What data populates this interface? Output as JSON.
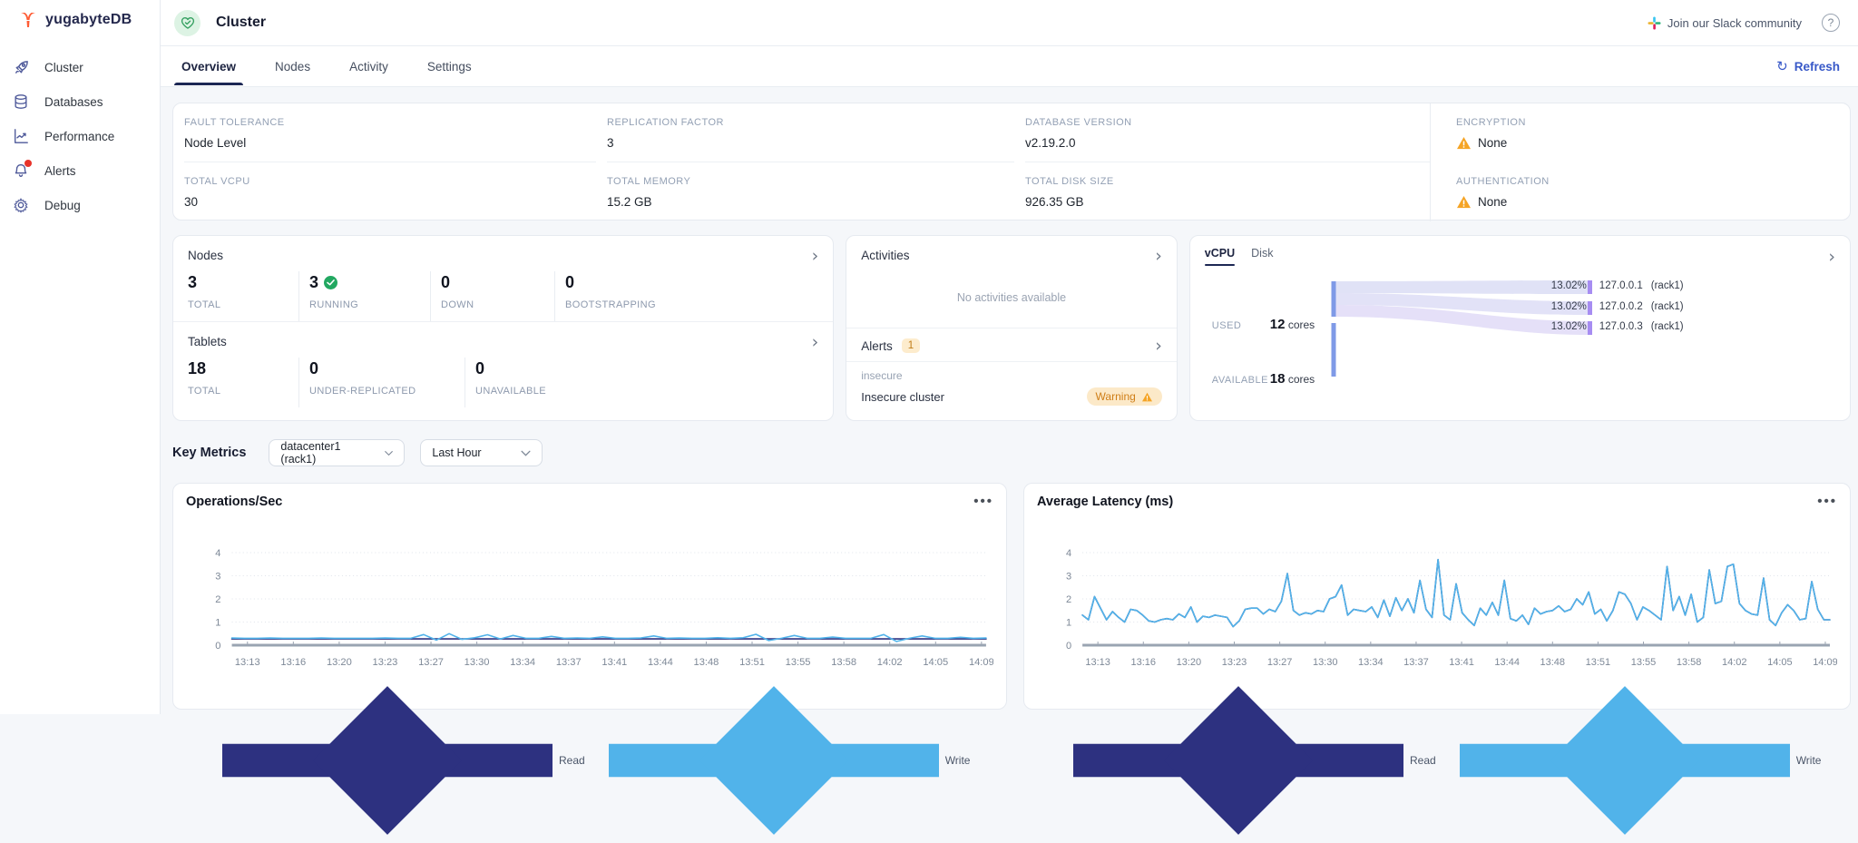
{
  "app": {
    "logo_text": "yugabyteDB"
  },
  "sidebar": {
    "items": [
      {
        "label": "Cluster",
        "icon": "rocket-icon"
      },
      {
        "label": "Databases",
        "icon": "database-icon"
      },
      {
        "label": "Performance",
        "icon": "performance-chart-icon"
      },
      {
        "label": "Alerts",
        "icon": "bell-icon",
        "has_notification_dot": true
      },
      {
        "label": "Debug",
        "icon": "gear-icon"
      }
    ]
  },
  "header": {
    "title": "Cluster",
    "slack_link": "Join our Slack community",
    "help": "?"
  },
  "tabs": {
    "items": [
      "Overview",
      "Nodes",
      "Activity",
      "Settings"
    ],
    "active": "Overview",
    "refresh_label": "Refresh"
  },
  "info": {
    "fault_tolerance": {
      "label": "FAULT TOLERANCE",
      "value": "Node Level"
    },
    "replication_factor": {
      "label": "REPLICATION FACTOR",
      "value": "3"
    },
    "database_version": {
      "label": "DATABASE VERSION",
      "value": "v2.19.2.0"
    },
    "encryption": {
      "label": "ENCRYPTION",
      "value": "None"
    },
    "total_vcpu": {
      "label": "TOTAL VCPU",
      "value": "30"
    },
    "total_memory": {
      "label": "TOTAL MEMORY",
      "value": "15.2 GB"
    },
    "total_disk_size": {
      "label": "TOTAL DISK SIZE",
      "value": "926.35 GB"
    },
    "authentication": {
      "label": "AUTHENTICATION",
      "value": "None"
    }
  },
  "nodes_panel": {
    "title": "Nodes",
    "stats": [
      {
        "value": "3",
        "label": "TOTAL"
      },
      {
        "value": "3",
        "label": "RUNNING",
        "check": true
      },
      {
        "value": "0",
        "label": "DOWN"
      },
      {
        "value": "0",
        "label": "BOOTSTRAPPING"
      }
    ],
    "tablets_title": "Tablets",
    "tablet_stats": [
      {
        "value": "18",
        "label": "TOTAL"
      },
      {
        "value": "0",
        "label": "UNDER-REPLICATED"
      },
      {
        "value": "0",
        "label": "UNAVAILABLE"
      }
    ]
  },
  "activities_panel": {
    "title": "Activities",
    "empty_text": "No activities available",
    "alerts_title": "Alerts",
    "alerts_count": "1",
    "alert_name": "insecure",
    "alert_desc": "Insecure cluster",
    "alert_badge": "Warning"
  },
  "vcpu_panel": {
    "tabs": [
      "vCPU",
      "Disk"
    ],
    "active_tab": "vCPU",
    "used_label": "USED",
    "used_value": "12",
    "used_unit": "cores",
    "available_label": "AVAILABLE",
    "available_value": "18",
    "available_unit": "cores",
    "nodes": [
      {
        "pct": "13.02%",
        "name": "127.0.0.1",
        "zone": "(rack1)"
      },
      {
        "pct": "13.02%",
        "name": "127.0.0.2",
        "zone": "(rack1)"
      },
      {
        "pct": "13.02%",
        "name": "127.0.0.3",
        "zone": "(rack1)"
      }
    ]
  },
  "key_metrics": {
    "title": "Key Metrics",
    "region_filter": "datacenter1 (rack1)",
    "time_filter": "Last Hour"
  },
  "colors": {
    "accent_blue": "#3758c8",
    "active_navy": "#1c2754",
    "green": "#22a861",
    "warning_orange": "#f5a425",
    "series_read": "#2d3180",
    "series_write": "#51b3ea",
    "sankey_source_bar": "#7f9ae7",
    "sankey_node_bar": "#a78df2",
    "sankey_ribbon": "#e2e3f7"
  },
  "chart_data": [
    {
      "type": "line",
      "title": "Operations/Sec",
      "xlabel": "",
      "ylabel": "",
      "ylim": [
        0,
        4
      ],
      "yticks": [
        0,
        1,
        2,
        3,
        4
      ],
      "grid": "dotted-horizontal",
      "legend_position": "bottom-left",
      "x_labels": [
        "13:13",
        "13:16",
        "13:20",
        "13:23",
        "13:27",
        "13:30",
        "13:34",
        "13:37",
        "13:41",
        "13:44",
        "13:48",
        "13:51",
        "13:55",
        "13:58",
        "14:02",
        "14:05",
        "14:09"
      ],
      "series": [
        {
          "name": "Read",
          "color": "#2d3180",
          "values": [
            0.27,
            0.27,
            0.27,
            0.27,
            0.27,
            0.27,
            0.27,
            0.27,
            0.27,
            0.27,
            0.27,
            0.27,
            0.27,
            0.27,
            0.27,
            0.27,
            0.27,
            0.27,
            0.27,
            0.27,
            0.27,
            0.27,
            0.27,
            0.27,
            0.27,
            0.27,
            0.27,
            0.27,
            0.27,
            0.27,
            0.27,
            0.27,
            0.27,
            0.27,
            0.27,
            0.27,
            0.27,
            0.27,
            0.27,
            0.27,
            0.27,
            0.27,
            0.27,
            0.27,
            0.27,
            0.27,
            0.27,
            0.27,
            0.27,
            0.27,
            0.27,
            0.27,
            0.27,
            0.27,
            0.27,
            0.27,
            0.27,
            0.27,
            0.27,
            0.27
          ]
        },
        {
          "name": "Write",
          "color": "#51b3ea",
          "values": [
            0.31,
            0.3,
            0.3,
            0.31,
            0.3,
            0.3,
            0.3,
            0.31,
            0.3,
            0.3,
            0.3,
            0.3,
            0.31,
            0.3,
            0.3,
            0.46,
            0.22,
            0.5,
            0.25,
            0.32,
            0.45,
            0.27,
            0.42,
            0.3,
            0.3,
            0.38,
            0.3,
            0.31,
            0.3,
            0.36,
            0.3,
            0.3,
            0.31,
            0.4,
            0.3,
            0.31,
            0.3,
            0.3,
            0.32,
            0.3,
            0.32,
            0.47,
            0.2,
            0.3,
            0.42,
            0.3,
            0.3,
            0.35,
            0.3,
            0.3,
            0.3,
            0.46,
            0.16,
            0.3,
            0.4,
            0.3,
            0.3,
            0.34,
            0.3,
            0.31
          ]
        }
      ]
    },
    {
      "type": "line",
      "title": "Average Latency (ms)",
      "xlabel": "",
      "ylabel": "",
      "ylim": [
        0,
        4
      ],
      "yticks": [
        0,
        1,
        2,
        3,
        4
      ],
      "grid": "dotted-horizontal",
      "legend_position": "bottom-left",
      "x_labels": [
        "13:13",
        "13:16",
        "13:20",
        "13:23",
        "13:27",
        "13:30",
        "13:34",
        "13:37",
        "13:41",
        "13:44",
        "13:48",
        "13:51",
        "13:55",
        "13:58",
        "14:02",
        "14:05",
        "14:09"
      ],
      "series": [
        {
          "name": "Read",
          "color": "#2d3180",
          "values": [
            1.3,
            1.1,
            2.1,
            1.6,
            1.1,
            1.45,
            1.2,
            1.0,
            1.55,
            1.5,
            1.3,
            1.05,
            1.0,
            1.1,
            1.15,
            1.1,
            1.35,
            1.2,
            1.65,
            1.0,
            1.25,
            1.2,
            1.3,
            1.25,
            1.2,
            0.8,
            1.05,
            1.55,
            1.6,
            1.6,
            1.35,
            1.55,
            1.45,
            1.9,
            3.1,
            1.5,
            1.3,
            1.4,
            1.35,
            1.5,
            1.45,
            2.0,
            2.1,
            2.6,
            1.3,
            1.55,
            1.5,
            1.45,
            1.65,
            1.2,
            1.95,
            1.25,
            2.05,
            1.5,
            2.0,
            1.4,
            2.8,
            1.55,
            1.2,
            3.7,
            1.3,
            1.1,
            2.65,
            1.4,
            1.1,
            0.85,
            1.6,
            1.3,
            1.85,
            1.3,
            2.8,
            1.15,
            1.05,
            1.3,
            0.9,
            1.6,
            1.35,
            1.45,
            1.5,
            1.7,
            1.45,
            1.55,
            2.0,
            1.75,
            2.3,
            1.35,
            1.55,
            1.05,
            1.5,
            2.3,
            2.2,
            1.8,
            1.1,
            1.65,
            1.5,
            1.3,
            1.1,
            3.4,
            1.5,
            2.1,
            1.3,
            2.2,
            1.0,
            1.2,
            3.25,
            1.8,
            1.9,
            3.4,
            3.5,
            1.8,
            1.5,
            1.35,
            1.3,
            2.9,
            1.1,
            0.85,
            1.4,
            1.75,
            1.5,
            1.1,
            1.15,
            2.75,
            1.55,
            1.1,
            1.1
          ]
        },
        {
          "name": "Write",
          "color": "#51b3ea",
          "values": [
            1.3,
            1.1,
            2.1,
            1.6,
            1.1,
            1.45,
            1.2,
            1.0,
            1.55,
            1.5,
            1.3,
            1.05,
            1.0,
            1.1,
            1.15,
            1.1,
            1.35,
            1.2,
            1.65,
            1.0,
            1.25,
            1.2,
            1.3,
            1.25,
            1.2,
            0.8,
            1.05,
            1.55,
            1.6,
            1.6,
            1.35,
            1.55,
            1.45,
            1.9,
            3.1,
            1.5,
            1.3,
            1.4,
            1.35,
            1.5,
            1.45,
            2.0,
            2.1,
            2.6,
            1.3,
            1.55,
            1.5,
            1.45,
            1.65,
            1.2,
            1.95,
            1.25,
            2.05,
            1.5,
            2.0,
            1.4,
            2.8,
            1.55,
            1.2,
            3.7,
            1.3,
            1.1,
            2.65,
            1.4,
            1.1,
            0.85,
            1.6,
            1.3,
            1.85,
            1.3,
            2.8,
            1.15,
            1.05,
            1.3,
            0.9,
            1.6,
            1.35,
            1.45,
            1.5,
            1.7,
            1.45,
            1.55,
            2.0,
            1.75,
            2.3,
            1.35,
            1.55,
            1.05,
            1.5,
            2.3,
            2.2,
            1.8,
            1.1,
            1.65,
            1.5,
            1.3,
            1.1,
            3.4,
            1.5,
            2.1,
            1.3,
            2.2,
            1.0,
            1.2,
            3.25,
            1.8,
            1.9,
            3.4,
            3.5,
            1.8,
            1.5,
            1.35,
            1.3,
            2.9,
            1.1,
            0.85,
            1.4,
            1.75,
            1.5,
            1.1,
            1.15,
            2.75,
            1.55,
            1.1,
            1.1
          ]
        }
      ]
    }
  ]
}
